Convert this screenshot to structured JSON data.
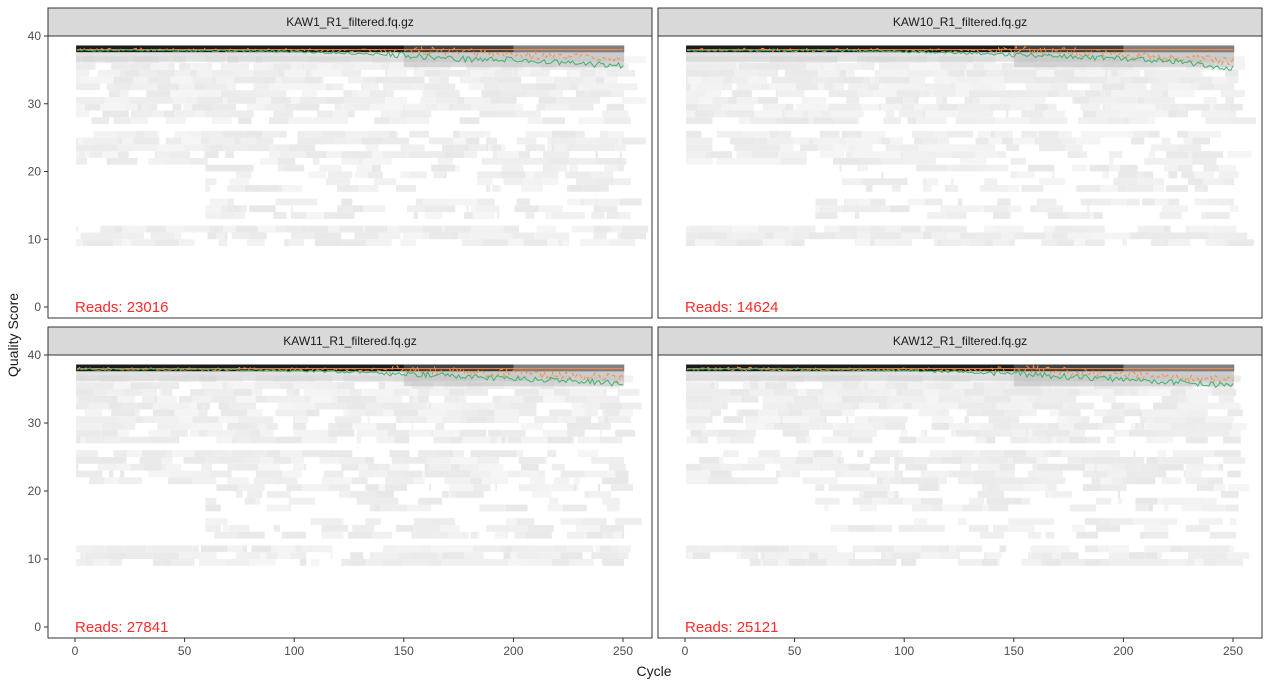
{
  "figure": {
    "ylabel": "Quality Score",
    "xlabel": "Cycle"
  },
  "colors": {
    "mean_line": "#3cb371",
    "quartile_line": "#ff8c42",
    "median_line": "#ff8c42",
    "reads_label": "#ff2a2a",
    "strip_bg": "#d9d9d9",
    "heatmap_dark": "#1a1a1a",
    "heatmap_light": "#f2f2f2"
  },
  "chart_data": [
    {
      "type": "heatmap",
      "title": "KAW1_R1_filtered.fq.gz",
      "reads_label": "Reads:  23016",
      "xlabel": "Cycle",
      "ylabel": "Quality Score",
      "xlim": [
        0,
        250
      ],
      "ylim": [
        0,
        40
      ],
      "x_ticks": [
        0,
        50,
        100,
        150,
        200,
        250
      ],
      "y_ticks": [
        0,
        10,
        20,
        30,
        40
      ],
      "mean_quality": {
        "x": [
          1,
          50,
          100,
          150,
          175,
          200,
          225,
          250
        ],
        "y": [
          37.9,
          37.9,
          37.7,
          37.2,
          36.6,
          36.5,
          36.0,
          35.6
        ]
      },
      "median_quality": {
        "x": [
          1,
          250
        ],
        "y": [
          38,
          38
        ]
      },
      "q25_quality": {
        "x": [
          1,
          160,
          200,
          250
        ],
        "y": [
          38,
          37.8,
          37.2,
          36.8
        ]
      }
    },
    {
      "type": "heatmap",
      "title": "KAW10_R1_filtered.fq.gz",
      "reads_label": "Reads:  14624",
      "xlabel": "Cycle",
      "ylabel": "Quality Score",
      "xlim": [
        0,
        250
      ],
      "ylim": [
        0,
        40
      ],
      "x_ticks": [
        0,
        50,
        100,
        150,
        200,
        250
      ],
      "y_ticks": [
        0,
        10,
        20,
        30,
        40
      ],
      "mean_quality": {
        "x": [
          1,
          50,
          100,
          150,
          175,
          200,
          225,
          250
        ],
        "y": [
          37.9,
          37.9,
          37.7,
          37.3,
          37.0,
          36.7,
          36.3,
          35.2
        ]
      },
      "median_quality": {
        "x": [
          1,
          250
        ],
        "y": [
          38,
          38
        ]
      },
      "q25_quality": {
        "x": [
          1,
          160,
          200,
          250
        ],
        "y": [
          38,
          37.8,
          37.3,
          36.2
        ]
      }
    },
    {
      "type": "heatmap",
      "title": "KAW11_R1_filtered.fq.gz",
      "reads_label": "Reads:  27841",
      "xlabel": "Cycle",
      "ylabel": "Quality Score",
      "xlim": [
        0,
        250
      ],
      "ylim": [
        0,
        40
      ],
      "x_ticks": [
        0,
        50,
        100,
        150,
        200,
        250
      ],
      "y_ticks": [
        0,
        10,
        20,
        30,
        40
      ],
      "mean_quality": {
        "x": [
          1,
          50,
          100,
          150,
          175,
          200,
          225,
          250
        ],
        "y": [
          37.9,
          37.9,
          37.7,
          37.3,
          36.9,
          36.5,
          36.2,
          35.8
        ]
      },
      "median_quality": {
        "x": [
          1,
          250
        ],
        "y": [
          38,
          38
        ]
      },
      "q25_quality": {
        "x": [
          1,
          160,
          200,
          250
        ],
        "y": [
          38,
          37.8,
          37.2,
          36.6
        ]
      }
    },
    {
      "type": "heatmap",
      "title": "KAW12_R1_filtered.fq.gz",
      "reads_label": "Reads:  25121",
      "xlabel": "Cycle",
      "ylabel": "Quality Score",
      "xlim": [
        0,
        250
      ],
      "ylim": [
        0,
        40
      ],
      "x_ticks": [
        0,
        50,
        100,
        150,
        200,
        250
      ],
      "y_ticks": [
        0,
        10,
        20,
        30,
        40
      ],
      "mean_quality": {
        "x": [
          1,
          50,
          100,
          150,
          175,
          200,
          225,
          250
        ],
        "y": [
          37.9,
          37.9,
          37.7,
          37.3,
          36.8,
          36.4,
          36.0,
          35.5
        ]
      },
      "median_quality": {
        "x": [
          1,
          250
        ],
        "y": [
          38,
          38
        ]
      },
      "q25_quality": {
        "x": [
          1,
          160,
          200,
          250
        ],
        "y": [
          38,
          37.8,
          37.1,
          36.3
        ]
      }
    }
  ]
}
